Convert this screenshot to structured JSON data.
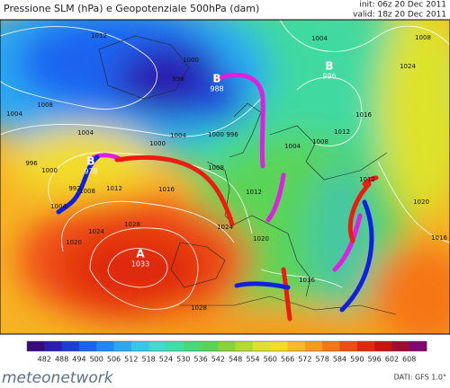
{
  "header": {
    "title": "Pressione SLM (hPa) e Geopotenziale 500hPa (dam)",
    "init": "init: 06z 20 Dec 2011",
    "valid": "valid: 18z 20 Dec 2011"
  },
  "map": {
    "centers": [
      {
        "symbol": "B",
        "value": "988"
      },
      {
        "symbol": "B",
        "value": "978"
      },
      {
        "symbol": "B",
        "value": "996"
      },
      {
        "symbol": "A",
        "value": "1033"
      }
    ],
    "isobar_labels": [
      "1012",
      "996",
      "1000",
      "1004",
      "1008",
      "1004",
      "996",
      "1000",
      "996",
      "1000",
      "992",
      "1004",
      "1008",
      "1012",
      "1016",
      "1004",
      "1000",
      "1008",
      "1012",
      "1020",
      "1024",
      "1028",
      "1024",
      "1020",
      "1028",
      "1016",
      "1004",
      "1008",
      "1016",
      "1012",
      "1008",
      "1004",
      "1024",
      "1020",
      "1016",
      "1012"
    ]
  },
  "colorbar": {
    "labels": [
      482,
      488,
      494,
      500,
      506,
      512,
      518,
      524,
      530,
      536,
      542,
      548,
      554,
      560,
      566,
      572,
      578,
      584,
      590,
      596,
      602,
      608
    ],
    "colors": [
      "#3a0a7a",
      "#2a1fb0",
      "#1b3ed8",
      "#1a63f0",
      "#1e88f5",
      "#2aa8f2",
      "#36c6e8",
      "#3fd9cf",
      "#3fe0a8",
      "#46dc7c",
      "#5ad456",
      "#86d43a",
      "#b4dc2f",
      "#dde22c",
      "#f6dc2a",
      "#f8bc22",
      "#f89a1c",
      "#f67616",
      "#ef4e12",
      "#e02a10",
      "#c8140e",
      "#a20c30",
      "#800870"
    ]
  },
  "footer": {
    "source": "DATI: GFS 1.0°",
    "logo": "meteonetwork"
  }
}
